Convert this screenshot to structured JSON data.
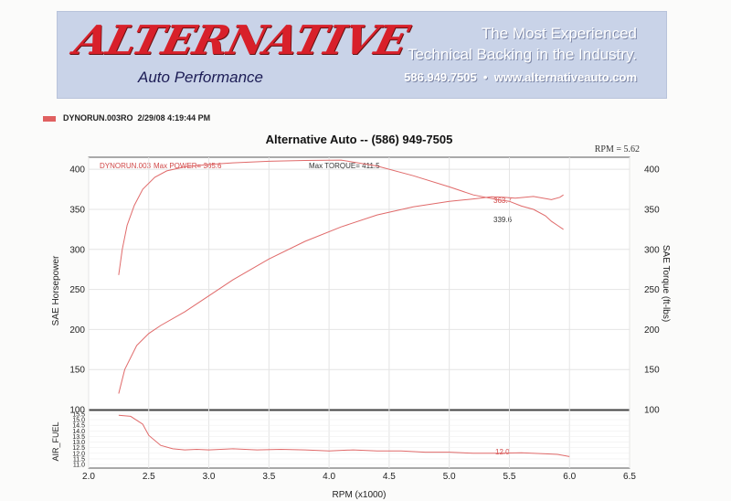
{
  "banner": {
    "logo_text": "ALTERNATIVE",
    "logo_subtitle": "Auto Performance",
    "tagline_line1": "The Most Experienced",
    "tagline_line2": "Technical Backing in the Industry.",
    "phone": "586.949.7505",
    "bullet": "•",
    "website": "www.alternativeauto.com"
  },
  "run_header": {
    "run_label": "DYNORUN.003RO",
    "datetime": "2/29/08 4:19:44 PM"
  },
  "colors": {
    "curve": "#e06a6a",
    "banner_bg": "#c9d3e8",
    "logo_red": "#d8202a"
  },
  "chart_data": {
    "type": "line",
    "title": "Alternative Auto -- (586) 949-7505",
    "rpm_readout": "RPM = 5.62",
    "xlabel": "RPM (x1000)",
    "xlim": [
      2.0,
      6.5
    ],
    "xticks": [
      "2.0",
      "2.5",
      "3.0",
      "3.5",
      "4.0",
      "4.5",
      "5.0",
      "5.5",
      "6.0",
      "6.5"
    ],
    "top_panel": {
      "ylabel_left": "SAE Horsepower",
      "ylabel_right": "SAE Torque (ft-lbs)",
      "ylim": [
        100,
        415
      ],
      "yticks": [
        "100",
        "150",
        "200",
        "250",
        "300",
        "350",
        "400"
      ],
      "annotations": {
        "run": "DYNORUN.003",
        "max_power": "Max POWER= 365.6",
        "max_torque": "Max TORQUE= 411.5",
        "torque_end": "363.7",
        "hp_end": "339.6"
      },
      "series": [
        {
          "name": "SAE Torque",
          "x": [
            2.25,
            2.28,
            2.32,
            2.38,
            2.45,
            2.55,
            2.65,
            2.8,
            3.0,
            3.2,
            3.5,
            3.8,
            4.1,
            4.4,
            4.7,
            5.0,
            5.2,
            5.4,
            5.5,
            5.6,
            5.7,
            5.8,
            5.85,
            5.9,
            5.95
          ],
          "y": [
            268,
            300,
            330,
            355,
            375,
            390,
            398,
            403,
            406,
            408,
            410,
            411,
            411.5,
            404,
            392,
            378,
            368,
            362,
            360,
            354,
            350,
            342,
            335,
            330,
            325
          ]
        },
        {
          "name": "SAE Horsepower",
          "x": [
            2.25,
            2.3,
            2.4,
            2.5,
            2.6,
            2.8,
            3.0,
            3.2,
            3.5,
            3.8,
            4.1,
            4.4,
            4.7,
            5.0,
            5.2,
            5.35,
            5.45,
            5.55,
            5.7,
            5.85,
            5.92,
            5.95
          ],
          "y": [
            120,
            150,
            180,
            195,
            205,
            222,
            242,
            262,
            288,
            310,
            328,
            343,
            353,
            360,
            363,
            365.6,
            365,
            364,
            366,
            362,
            365,
            368
          ]
        }
      ]
    },
    "bottom_panel": {
      "ylabel": "AIR_FUEL",
      "ylim": [
        11.0,
        15.5
      ],
      "yticks": [
        "11.0",
        "11.5",
        "12.0",
        "12.5",
        "13.0",
        "13.5",
        "14.0",
        "14.5",
        "15.0",
        "15.5"
      ],
      "annotation": "12.0",
      "series": [
        {
          "name": "AIR_FUEL",
          "x": [
            2.25,
            2.35,
            2.45,
            2.5,
            2.6,
            2.7,
            2.8,
            2.9,
            3.0,
            3.2,
            3.4,
            3.6,
            3.8,
            4.0,
            4.2,
            4.4,
            4.6,
            4.8,
            5.0,
            5.2,
            5.4,
            5.6,
            5.8,
            5.9,
            6.0
          ],
          "y": [
            15.4,
            15.3,
            14.6,
            13.6,
            12.7,
            12.4,
            12.3,
            12.35,
            12.3,
            12.4,
            12.3,
            12.35,
            12.3,
            12.2,
            12.3,
            12.2,
            12.2,
            12.1,
            12.1,
            12.0,
            12.0,
            12.05,
            11.95,
            11.9,
            11.7
          ]
        }
      ]
    }
  }
}
